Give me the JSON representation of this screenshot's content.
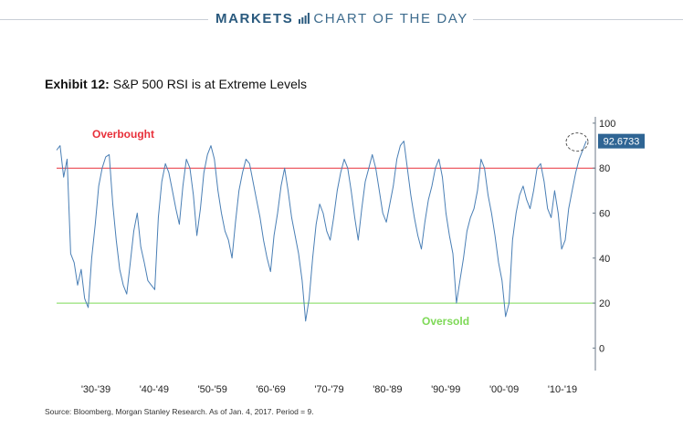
{
  "header": {
    "markets": "MARKETS",
    "section": "CHART OF THE DAY"
  },
  "exhibit": {
    "label": "Exhibit 12:",
    "title": "S&P 500 RSI is at Extreme Levels"
  },
  "source": "Source: Bloomberg, Morgan Stanley Research. As of Jan. 4, 2017. Period = 9.",
  "colors": {
    "brand": "#2a5a7e",
    "series": "#4a7fb5",
    "overbought": "#e8303a",
    "oversold": "#7ed957",
    "callout": "#2f6594"
  },
  "chart_data": {
    "type": "line",
    "series": [
      {
        "values": [
          88,
          90,
          76,
          84,
          42,
          38,
          28,
          35,
          22,
          18,
          40,
          55,
          72,
          80,
          85,
          86,
          64,
          48,
          35,
          28,
          24,
          38,
          52,
          60,
          45,
          38,
          30,
          28,
          26,
          58,
          74,
          82,
          78,
          70,
          62,
          55,
          72,
          84,
          80,
          68,
          50,
          62,
          78,
          86,
          90,
          84,
          70,
          60,
          52,
          48,
          40,
          56,
          70,
          78,
          84,
          82,
          74,
          66,
          58,
          48,
          40,
          34,
          50,
          60,
          72,
          80,
          70,
          58,
          50,
          42,
          30,
          12,
          22,
          40,
          55,
          64,
          60,
          52,
          48,
          58,
          70,
          78,
          84,
          80,
          70,
          58,
          48,
          62,
          74,
          80,
          86,
          80,
          70,
          60,
          56,
          64,
          72,
          84,
          90,
          92,
          80,
          68,
          58,
          50,
          44,
          56,
          66,
          72,
          80,
          84,
          76,
          60,
          50,
          42,
          20,
          30,
          40,
          52,
          58,
          62,
          70,
          84,
          80,
          68,
          60,
          50,
          38,
          30,
          14,
          20,
          48,
          60,
          68,
          72,
          66,
          62,
          70,
          80,
          82,
          74,
          62,
          58,
          70,
          60,
          44,
          48,
          62,
          70,
          78,
          84,
          88,
          92
        ]
      }
    ],
    "x_labels": [
      "'30-'39",
      "'40-'49",
      "'50-'59",
      "'60-'69",
      "'70-'79",
      "'80-'89",
      "'90-'99",
      "'00-'09",
      "'10-'19"
    ],
    "y_ticks": [
      0,
      20,
      40,
      60,
      80,
      100
    ],
    "ylim": [
      -10,
      102
    ],
    "overbought": {
      "value": 80,
      "label": "Overbought"
    },
    "oversold": {
      "value": 20,
      "label": "Oversold"
    },
    "last_value_label": "92.6733"
  }
}
